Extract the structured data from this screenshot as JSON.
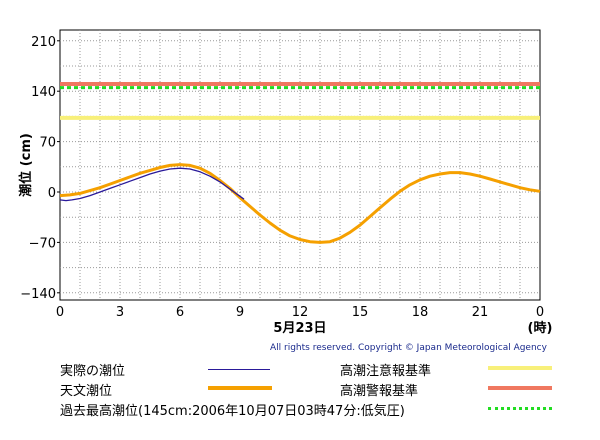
{
  "chart_data": {
    "type": "line",
    "ylabel": "潮位 (cm)",
    "xlabel": "5月23日",
    "x_unit_label": "(時)",
    "x_ticks": [
      "0",
      "3",
      "6",
      "9",
      "12",
      "15",
      "18",
      "21",
      "0"
    ],
    "y_ticks": [
      210,
      140,
      70,
      0,
      -70,
      -140
    ],
    "xlim": [
      0,
      24
    ],
    "ylim": [
      -150,
      225
    ],
    "grid": true,
    "series": [
      {
        "name": "天文潮位",
        "color": "#f5a000",
        "x": [
          0,
          0.5,
          1,
          1.5,
          2,
          2.5,
          3,
          3.5,
          4,
          4.5,
          5,
          5.5,
          6,
          6.5,
          7,
          7.5,
          8,
          8.5,
          9,
          9.5,
          10,
          10.5,
          11,
          11.5,
          12,
          12.5,
          13,
          13.5,
          14,
          14.5,
          15,
          15.5,
          16,
          16.5,
          17,
          17.5,
          18,
          18.5,
          19,
          19.5,
          20,
          20.5,
          21,
          21.5,
          22,
          22.5,
          23,
          23.5,
          24
        ],
        "y": [
          -5,
          -4,
          -2,
          2,
          6,
          11,
          16,
          21,
          26,
          30,
          34,
          37,
          38,
          37,
          33,
          26,
          16,
          5,
          -8,
          -20,
          -32,
          -43,
          -53,
          -61,
          -66,
          -69,
          -70,
          -69,
          -64,
          -56,
          -46,
          -34,
          -22,
          -10,
          1,
          10,
          17,
          22,
          25,
          27,
          27,
          25,
          22,
          18,
          14,
          10,
          6,
          3,
          1
        ]
      },
      {
        "name": "実際の潮位",
        "color": "#2a1a9a",
        "x": [
          0,
          0.3,
          0.6,
          1,
          1.5,
          2,
          2.5,
          3,
          3.5,
          4,
          4.5,
          5,
          5.5,
          6,
          6.5,
          7,
          7.5,
          8,
          8.5,
          9,
          9.2
        ],
        "y": [
          -11,
          -12,
          -11,
          -9,
          -5,
          0,
          5,
          10,
          15,
          20,
          25,
          29,
          32,
          33,
          32,
          28,
          22,
          14,
          4,
          -6,
          -10
        ]
      }
    ],
    "reference_lines": [
      {
        "name": "高潮注意報基準",
        "value": 103,
        "color": "#f8f07a",
        "style": "solid"
      },
      {
        "name": "高潮警報基準",
        "value": 150,
        "color": "#f07860",
        "style": "solid"
      },
      {
        "name": "過去最高潮位(145cm:2006年10月07日03時47分:低気圧)",
        "value": 145,
        "color": "#22dd22",
        "style": "dotted"
      }
    ]
  },
  "copyright": "All rights reserved. Copyright © Japan Meteorological Agency",
  "legend": [
    {
      "label": "実際の潮位",
      "color": "#2a1a9a",
      "style": "thin"
    },
    {
      "label": "高潮注意報基準",
      "color": "#f8f07a",
      "style": "thick"
    },
    {
      "label": "天文潮位",
      "color": "#f5a000",
      "style": "thick"
    },
    {
      "label": "高潮警報基準",
      "color": "#f07860",
      "style": "thick"
    },
    {
      "label": "過去最高潮位(145cm:2006年10月07日03時47分:低気圧)",
      "color": "#22dd22",
      "style": "dotted"
    }
  ]
}
